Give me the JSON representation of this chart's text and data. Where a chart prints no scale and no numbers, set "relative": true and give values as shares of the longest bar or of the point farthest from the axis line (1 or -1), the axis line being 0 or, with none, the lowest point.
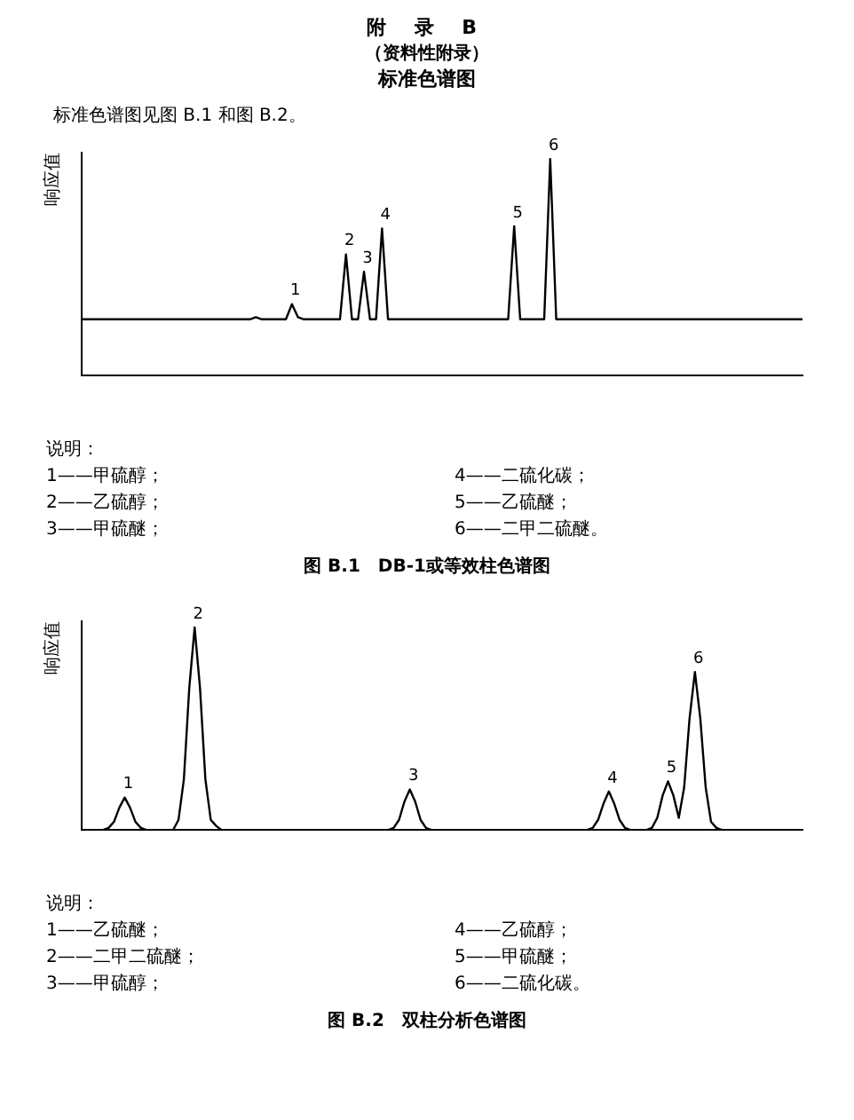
{
  "chart_data": [
    {
      "type": "line",
      "title": "附 录 B",
      "subtitle": "（资料性附录）",
      "ylabel": "响应值",
      "relative": true,
      "legend": false,
      "grid": false,
      "marker": "none",
      "annotations": [
        "标准色谱图",
        "标准色谱图见图 B.1 和图 B.2。",
        "说明：",
        "1——甲硫醇；",
        "2——乙硫醇；",
        "3——甲硫醚；",
        "4——二硫化碳；",
        "5——乙硫醚；",
        "6——二甲二硫醚。",
        "图 B.1　DB-1或等效柱色谱图",
        {
          "text": "1",
          "y": 0.33
        },
        {
          "text": "2",
          "y": 0.56
        },
        {
          "text": "3",
          "y": 0.48
        },
        {
          "text": "4",
          "y": 0.68
        },
        {
          "text": "5",
          "y": 0.69
        },
        {
          "text": "6",
          "y": 1
        }
      ],
      "categories": [
        null,
        null,
        null,
        null,
        null,
        null,
        null,
        null,
        null,
        null,
        null,
        null,
        null,
        null,
        null,
        null,
        null,
        null,
        null,
        null,
        null,
        null,
        null,
        null,
        null,
        null,
        null,
        null,
        null,
        null,
        null,
        null,
        null,
        null,
        null,
        null,
        null,
        null,
        null,
        null,
        null,
        null,
        null,
        null,
        null,
        null,
        null,
        null,
        null,
        null,
        null,
        null,
        null,
        null,
        null,
        null,
        null,
        null,
        null,
        null,
        null,
        null,
        null,
        null,
        null,
        null,
        null,
        null,
        null,
        null,
        null,
        null,
        null,
        null,
        null,
        null,
        null,
        null,
        null,
        null,
        null,
        null,
        null,
        null,
        null,
        null,
        null,
        null,
        null,
        null,
        null,
        null,
        null,
        null,
        null,
        null,
        null,
        null,
        null,
        null,
        null,
        null,
        null,
        null,
        null,
        null,
        null,
        null,
        null,
        null,
        null,
        null,
        null,
        null,
        null,
        null,
        null,
        null,
        null,
        null,
        null
      ],
      "series": [
        {
          "color": "#000000",
          "values": [
            0.26,
            0.26,
            0.26,
            0.26,
            0.26,
            0.26,
            0.26,
            0.26,
            0.26,
            0.26,
            0.26,
            0.26,
            0.26,
            0.26,
            0.26,
            0.26,
            0.26,
            0.26,
            0.26,
            0.26,
            0.26,
            0.26,
            0.26,
            0.26,
            0.26,
            0.26,
            0.26,
            0.26,
            0.26,
            0.27,
            0.26,
            0.26,
            0.26,
            0.26,
            0.26,
            0.33,
            0.27,
            0.26,
            0.26,
            0.26,
            0.26,
            0.26,
            0.26,
            0.26,
            0.56,
            0.26,
            0.26,
            0.48,
            0.26,
            0.26,
            0.68,
            0.26,
            0.26,
            0.26,
            0.26,
            0.26,
            0.26,
            0.26,
            0.26,
            0.26,
            0.26,
            0.26,
            0.26,
            0.26,
            0.26,
            0.26,
            0.26,
            0.26,
            0.26,
            0.26,
            0.26,
            0.26,
            0.69,
            0.26,
            0.26,
            0.26,
            0.26,
            0.26,
            1,
            0.26,
            0.26,
            0.26,
            0.26,
            0.26,
            0.26,
            0.26,
            0.26,
            0.26,
            0.26,
            0.26,
            0.26,
            0.26,
            0.26,
            0.26,
            0.26,
            0.26,
            0.26,
            0.26,
            0.26,
            0.26,
            0.26,
            0.26,
            0.26,
            0.26,
            0.26,
            0.26,
            0.26,
            0.26,
            0.26,
            0.26,
            0.26,
            0.26,
            0.26,
            0.26,
            0.26,
            0.26,
            0.26,
            0.26,
            0.26,
            0.26,
            0.26
          ]
        }
      ]
    },
    {
      "type": "line",
      "ylabel": "响应值",
      "relative": true,
      "legend": false,
      "grid": false,
      "marker": "none",
      "annotations": [
        "说明：",
        "1——乙硫醚；",
        "2——二甲二硫醚；",
        "3——甲硫醇；",
        "4——乙硫醇；",
        "5——甲硫醚；",
        "6——二硫化碳。",
        "图 B.2　双柱分析色谱图",
        {
          "text": "1",
          "y": 0.16
        },
        {
          "text": "2",
          "y": 1
        },
        {
          "text": "3",
          "y": 0.2
        },
        {
          "text": "4",
          "y": 0.19
        },
        {
          "text": "5",
          "y": 0.24
        },
        {
          "text": "6",
          "y": 0.78
        }
      ],
      "categories": [
        null,
        null,
        null,
        null,
        null,
        null,
        null,
        null,
        null,
        null,
        null,
        null,
        null,
        null,
        null,
        null,
        null,
        null,
        null,
        null,
        null,
        null,
        null,
        null,
        null,
        null,
        null,
        null,
        null,
        null,
        null,
        null,
        null,
        null,
        null,
        null,
        null,
        null,
        null,
        null,
        null,
        null,
        null,
        null,
        null,
        null,
        null,
        null,
        null,
        null,
        null,
        null,
        null,
        null,
        null,
        null,
        null,
        null,
        null,
        null,
        null,
        null,
        null,
        null,
        null,
        null,
        null,
        null,
        null,
        null,
        null,
        null,
        null,
        null,
        null,
        null,
        null,
        null,
        null,
        null,
        null,
        null,
        null,
        null,
        null,
        null,
        null,
        null,
        null,
        null,
        null,
        null,
        null,
        null,
        null,
        null,
        null,
        null,
        null,
        null,
        null,
        null,
        null,
        null,
        null,
        null,
        null,
        null,
        null,
        null,
        null,
        null,
        null,
        null,
        null,
        null,
        null,
        null,
        null,
        null,
        null,
        null,
        null,
        null,
        null,
        null,
        null,
        null,
        null,
        null,
        null,
        null,
        null,
        null,
        null
      ],
      "series": [
        {
          "color": "#000000",
          "values": [
            0,
            0,
            0,
            0,
            0,
            0.01,
            0.04,
            0.11,
            0.16,
            0.11,
            0.04,
            0.01,
            0,
            0,
            0,
            0,
            0,
            0,
            0.05,
            0.25,
            0.7,
            1,
            0.7,
            0.25,
            0.05,
            0.02,
            0,
            0,
            0,
            0,
            0,
            0,
            0,
            0,
            0,
            0,
            0,
            0,
            0,
            0,
            0,
            0,
            0,
            0,
            0,
            0,
            0,
            0,
            0,
            0,
            0,
            0,
            0,
            0,
            0,
            0,
            0,
            0,
            0.01,
            0.05,
            0.14,
            0.2,
            0.14,
            0.05,
            0.01,
            0,
            0,
            0,
            0,
            0,
            0,
            0,
            0,
            0,
            0,
            0,
            0,
            0,
            0,
            0,
            0,
            0,
            0,
            0,
            0,
            0,
            0,
            0,
            0,
            0,
            0,
            0,
            0,
            0,
            0,
            0.01,
            0.05,
            0.13,
            0.19,
            0.13,
            0.05,
            0.01,
            0,
            0,
            0,
            0,
            0.01,
            0.06,
            0.17,
            0.24,
            0.17,
            0.06,
            0.21,
            0.55,
            0.78,
            0.55,
            0.21,
            0.04,
            0.01,
            0,
            0,
            0,
            0,
            0,
            0,
            0,
            0,
            0,
            0,
            0,
            0,
            0,
            0,
            0,
            0
          ]
        }
      ]
    }
  ]
}
